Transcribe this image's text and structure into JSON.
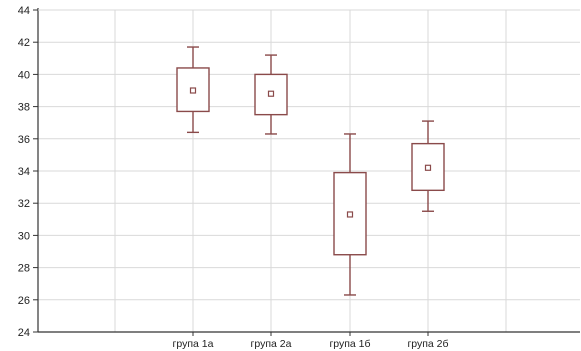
{
  "chart_data": {
    "type": "boxplot",
    "title": "",
    "xlabel": "",
    "ylabel": "",
    "ylim": [
      24,
      44
    ],
    "yticks": [
      24,
      26,
      28,
      30,
      32,
      34,
      36,
      38,
      40,
      42,
      44
    ],
    "grid": true,
    "categories": [
      "група 1а",
      "група 2а",
      "група 1б",
      "група 2б"
    ],
    "series": [
      {
        "category": "група 1а",
        "mean": 39.0,
        "box_low": 37.7,
        "box_high": 40.4,
        "whisker_low": 36.4,
        "whisker_high": 41.7
      },
      {
        "category": "група 2а",
        "mean": 38.8,
        "box_low": 37.5,
        "box_high": 40.0,
        "whisker_low": 36.3,
        "whisker_high": 41.2
      },
      {
        "category": "група 1б",
        "mean": 31.3,
        "box_low": 28.8,
        "box_high": 33.9,
        "whisker_low": 26.3,
        "whisker_high": 36.3
      },
      {
        "category": "група 2б",
        "mean": 34.2,
        "box_low": 32.8,
        "box_high": 35.7,
        "whisker_low": 31.5,
        "whisker_high": 37.1
      }
    ],
    "colors": {
      "box": "#8a4a4a",
      "grid": "#d9d9d9",
      "axis": "#333333"
    }
  }
}
